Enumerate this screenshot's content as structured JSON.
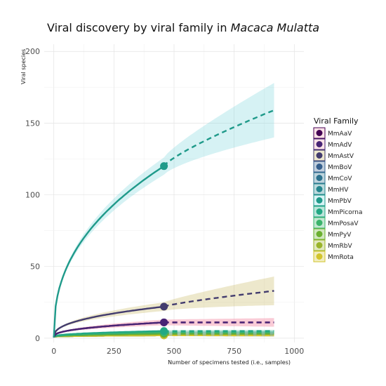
{
  "chart_data": {
    "type": "line",
    "title_prefix": "Viral discovery by viral family in ",
    "title_italic": "Macaca Mulatta",
    "xlabel": "Number of specimens tested (i.e., samples)",
    "ylabel": "Viral species",
    "xlim": [
      -40,
      1040
    ],
    "ylim": [
      -3,
      205
    ],
    "xticks": [
      0,
      250,
      500,
      750,
      1000
    ],
    "yticks": [
      0,
      50,
      100,
      150,
      200
    ],
    "grid": true,
    "legend_position": "right",
    "legend_title": "Viral Family",
    "observed_x_max": 458,
    "extrapolated_x_max": 916,
    "series": [
      {
        "name": "MmAaV",
        "color": "#440154",
        "observed": 11,
        "extrapolated": 11,
        "band_obs": 2,
        "band_ext": 3
      },
      {
        "name": "MmAdV",
        "color": "#482475",
        "observed": 11,
        "extrapolated": 11,
        "band_obs": 2,
        "band_ext": 3
      },
      {
        "name": "MmAstV",
        "color": "#433C6E",
        "observed": 22,
        "extrapolated": 33,
        "band_obs": 3,
        "band_ext": 10
      },
      {
        "name": "MmBoV",
        "color": "#355F8D",
        "observed": 2,
        "extrapolated": 2,
        "band_obs": 0.5,
        "band_ext": 0.8
      },
      {
        "name": "MmCoV",
        "color": "#2C728E",
        "observed": 3,
        "extrapolated": 3,
        "band_obs": 0.5,
        "band_ext": 0.8
      },
      {
        "name": "MmHV",
        "color": "#24868E",
        "observed": 4,
        "extrapolated": 4,
        "band_obs": 0.5,
        "band_ext": 0.8
      },
      {
        "name": "MmPbV",
        "color": "#1F9A8A",
        "observed": 120,
        "extrapolated": 159,
        "band_obs": 6,
        "band_ext": 19
      },
      {
        "name": "MmPicorna",
        "color": "#22A884",
        "observed": 5,
        "extrapolated": 5,
        "band_obs": 0.5,
        "band_ext": 0.8
      },
      {
        "name": "MmPosaV",
        "color": "#3BB46C",
        "observed": 4,
        "extrapolated": 4,
        "band_obs": 0.5,
        "band_ext": 0.8
      },
      {
        "name": "MmPyV",
        "color": "#6BB030",
        "observed": 3,
        "extrapolated": 3,
        "band_obs": 0.5,
        "band_ext": 0.8
      },
      {
        "name": "MmRbV",
        "color": "#9AB42A",
        "observed": 2,
        "extrapolated": 2,
        "band_obs": 0.5,
        "band_ext": 0.8
      },
      {
        "name": "MmRota",
        "color": "#D2C42C",
        "observed": 2,
        "extrapolated": 2,
        "band_obs": 0.5,
        "band_ext": 0.8
      }
    ]
  }
}
